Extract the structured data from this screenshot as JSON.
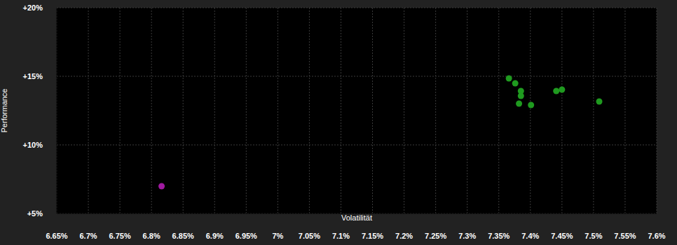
{
  "chart_data": {
    "type": "scatter",
    "x_label": "Volatilität",
    "y_label": "Performance",
    "x": [
      7.366,
      7.376,
      7.385,
      7.385,
      7.382,
      7.401,
      7.441,
      7.45,
      7.509,
      6.816
    ],
    "values": [
      14.85,
      14.49,
      13.93,
      13.57,
      13.01,
      12.91,
      13.93,
      14.03,
      13.16,
      6.99
    ],
    "colors": [
      "#1f9a1f",
      "#1f9a1f",
      "#1f9a1f",
      "#1f9a1f",
      "#1f9a1f",
      "#1f9a1f",
      "#1f9a1f",
      "#1f9a1f",
      "#1f9a1f",
      "#a01aa0"
    ],
    "xlim": [
      6.65,
      7.6
    ],
    "xticks": [
      {
        "value": 6.65,
        "label": "6.65%"
      },
      {
        "value": 6.7,
        "label": "6.7%"
      },
      {
        "value": 6.75,
        "label": "6.75%"
      },
      {
        "value": 6.8,
        "label": "6.8%"
      },
      {
        "value": 6.85,
        "label": "6.85%"
      },
      {
        "value": 6.9,
        "label": "6.9%"
      },
      {
        "value": 6.95,
        "label": "6.95%"
      },
      {
        "value": 7,
        "label": "7%"
      },
      {
        "value": 7.05,
        "label": "7.05%"
      },
      {
        "value": 7.1,
        "label": "7.1%"
      },
      {
        "value": 7.15,
        "label": "7.15%"
      },
      {
        "value": 7.2,
        "label": "7.2%"
      },
      {
        "value": 7.25,
        "label": "7.25%"
      },
      {
        "value": 7.3,
        "label": "7.3%"
      },
      {
        "value": 7.35,
        "label": "7.35%"
      },
      {
        "value": 7.4,
        "label": "7.4%"
      },
      {
        "value": 7.45,
        "label": "7.45%"
      },
      {
        "value": 7.5,
        "label": "7.5%"
      },
      {
        "value": 7.55,
        "label": "7.55%"
      },
      {
        "value": 7.6,
        "label": "7.6%"
      }
    ],
    "ylim": [
      5,
      20
    ],
    "yticks": [
      {
        "value": 5,
        "label": "+5%"
      },
      {
        "value": 10,
        "label": "+10%"
      },
      {
        "value": 15,
        "label": "+15%"
      },
      {
        "value": 20,
        "label": "+20%"
      }
    ],
    "grid": true
  }
}
